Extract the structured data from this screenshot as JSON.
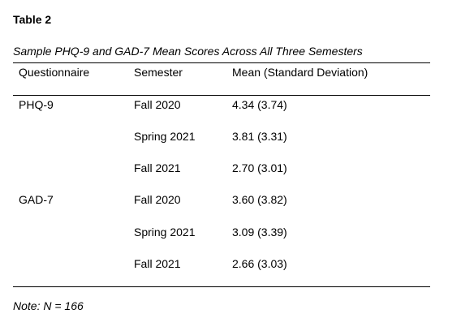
{
  "table": {
    "label": "Table 2",
    "caption": "Sample PHQ-9 and GAD-7 Mean Scores Across All Three Semesters",
    "headers": {
      "questionnaire": "Questionnaire",
      "semester": "Semester",
      "mean": "Mean (Standard Deviation)"
    },
    "rows": [
      {
        "questionnaire": "PHQ-9",
        "semester": "Fall 2020",
        "mean": "4.34 (3.74)"
      },
      {
        "questionnaire": "",
        "semester": "Spring 2021",
        "mean": "3.81 (3.31)"
      },
      {
        "questionnaire": "",
        "semester": "Fall 2021",
        "mean": "2.70 (3.01)"
      },
      {
        "questionnaire": "GAD-7",
        "semester": "Fall 2020",
        "mean": "3.60 (3.82)"
      },
      {
        "questionnaire": "",
        "semester": "Spring 2021",
        "mean": "3.09 (3.39)"
      },
      {
        "questionnaire": "",
        "semester": "Fall 2021",
        "mean": "2.66 (3.03)"
      }
    ],
    "note": "Note: N = 166"
  }
}
